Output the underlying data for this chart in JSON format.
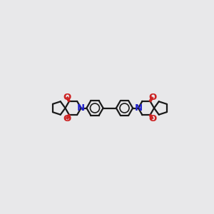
{
  "bg_color": "#e8e8ea",
  "bond_color": "#1a1a1a",
  "N_color": "#2222cc",
  "O_color": "#cc2222",
  "lw": 1.6,
  "figsize": [
    3.0,
    3.0
  ],
  "dpi": 100,
  "xlim": [
    -4.2,
    4.2
  ],
  "ylim": [
    -2.0,
    2.0
  ],
  "benz_r": 0.42,
  "ring6_r": 0.4,
  "pent_r": 0.35,
  "co_ext": 0.22,
  "label_fs": 9.5
}
